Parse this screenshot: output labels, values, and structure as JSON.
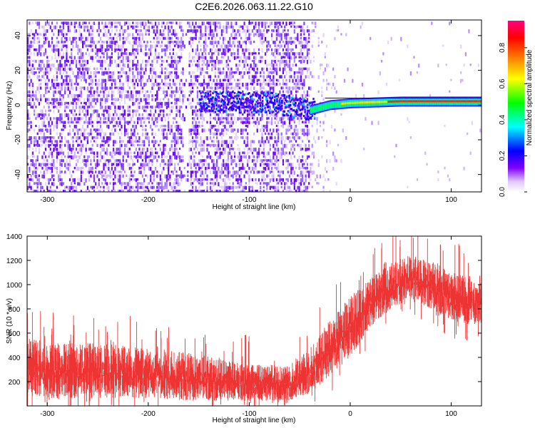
{
  "figure_title": "C2E6.2026.063.11.22.G10",
  "chart_data": [
    {
      "type": "heatmap",
      "xlabel": "Height of straight line (km)",
      "ylabel": "Frequency (Hz)",
      "xlim": [
        -320,
        130
      ],
      "ylim": [
        -50,
        49
      ],
      "x_ticks": [
        -300,
        -200,
        -100,
        0,
        100
      ],
      "y_ticks": [
        -40,
        -20,
        0,
        20,
        40
      ],
      "colorbar": {
        "label": "Normalized spectral amplitude",
        "range": [
          0,
          0.95
        ],
        "ticks": [
          0.0,
          0.2,
          0.4,
          0.6,
          0.8
        ],
        "colormap": [
          "#ffffff",
          "#d8c0ff",
          "#8000ff",
          "#0000ff",
          "#00ffff",
          "#00ff00",
          "#ffff00",
          "#ff8000",
          "#ff0000",
          "#ff0080"
        ]
      },
      "signal_line": {
        "description": "narrow band near 0 Hz",
        "points": [
          [
            -150,
            2
          ],
          [
            -80,
            1
          ],
          [
            -40,
            -3
          ],
          [
            -20,
            0
          ],
          [
            0,
            1
          ],
          [
            50,
            2
          ],
          [
            130,
            2
          ]
        ]
      },
      "noise_edge_km": -40
    },
    {
      "type": "line",
      "xlabel": "Height of straight line (km)",
      "ylabel": "SNR (10 * v/v)",
      "xlim": [
        -320,
        130
      ],
      "ylim": [
        0,
        1400
      ],
      "x_ticks": [
        -300,
        -200,
        -100,
        0,
        100
      ],
      "y_ticks": [
        200,
        400,
        600,
        800,
        1000,
        1200,
        1400
      ],
      "color": "#ee3333",
      "envelope": {
        "x": [
          -320,
          -300,
          -250,
          -200,
          -150,
          -100,
          -60,
          -40,
          -20,
          0,
          20,
          40,
          60,
          80,
          100,
          130
        ],
        "low": [
          80,
          60,
          60,
          60,
          40,
          40,
          40,
          100,
          250,
          400,
          650,
          800,
          880,
          800,
          700,
          640
        ],
        "high": [
          560,
          520,
          520,
          480,
          430,
          340,
          340,
          480,
          720,
          900,
          1050,
          1180,
          1250,
          1200,
          1100,
          1080
        ]
      }
    }
  ]
}
